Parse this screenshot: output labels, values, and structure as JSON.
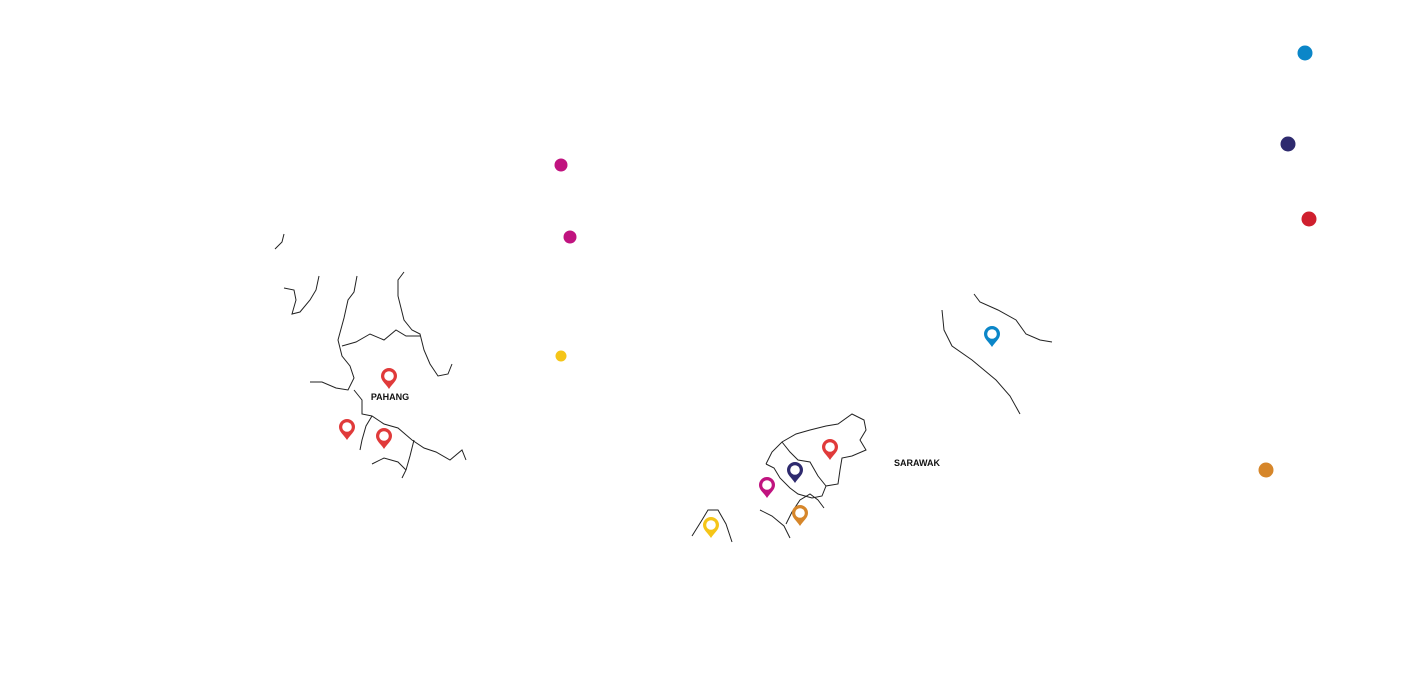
{
  "regions": [
    {
      "name": "PAHANG"
    },
    {
      "name": "SARAWAK"
    }
  ]
}
